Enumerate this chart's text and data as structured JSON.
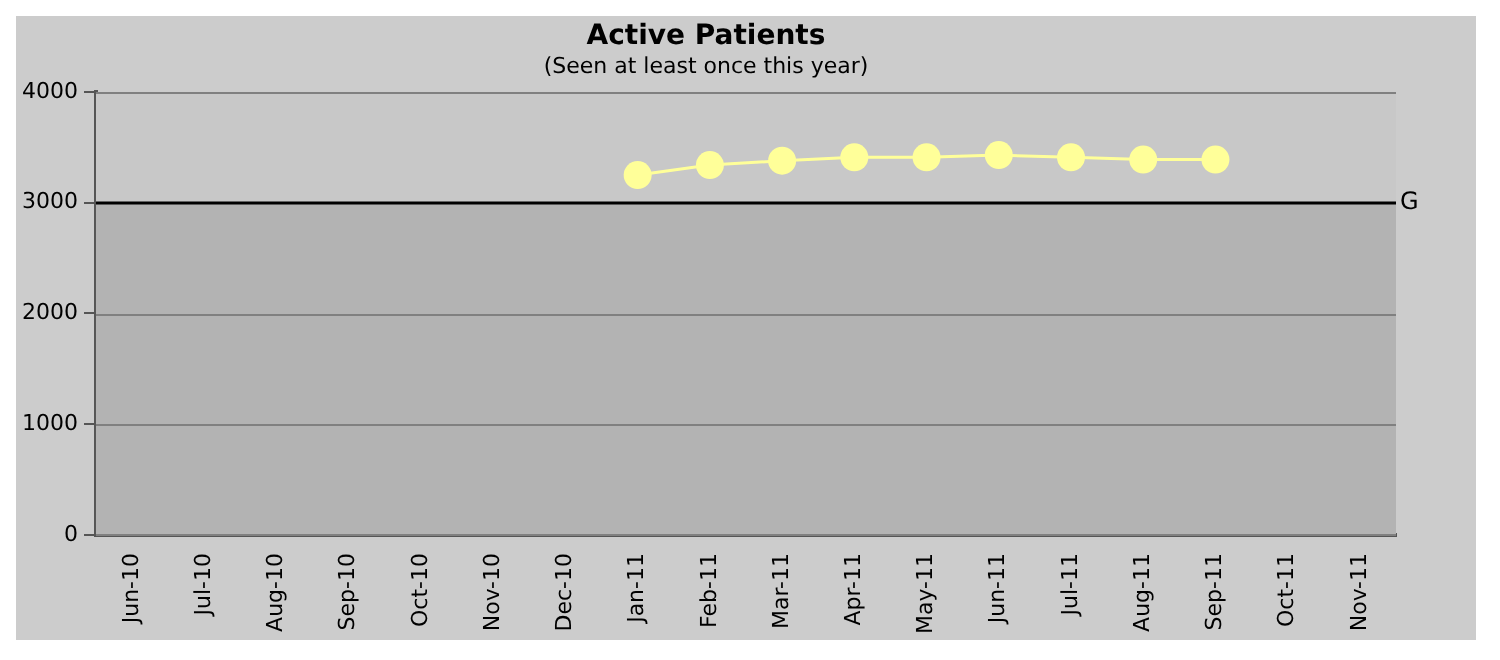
{
  "chart_data": {
    "type": "line",
    "title": "Active Patients",
    "subtitle": "(Seen at least once this year)",
    "categories": [
      "Jun-10",
      "Jul-10",
      "Aug-10",
      "Sep-10",
      "Oct-10",
      "Nov-10",
      "Dec-10",
      "Jan-11",
      "Feb-11",
      "Mar-11",
      "Apr-11",
      "May-11",
      "Jun-11",
      "Jul-11",
      "Aug-11",
      "Sep-11",
      "Oct-11",
      "Nov-11"
    ],
    "series": [
      {
        "color": "#ffff99",
        "values": [
          null,
          null,
          null,
          null,
          null,
          null,
          null,
          3250,
          3340,
          3380,
          3410,
          3410,
          3430,
          3410,
          3390,
          3390,
          null,
          null
        ]
      }
    ],
    "ylim": [
      0,
      4000
    ],
    "yticks": [
      0,
      1000,
      2000,
      3000,
      4000
    ],
    "grid": "y",
    "marker": "circle",
    "line_style": "solid",
    "ref_lines": [
      {
        "axis": "y",
        "value": 3000,
        "label": "G",
        "color": "#000000"
      }
    ],
    "bands": [
      {
        "axis": "y",
        "from": 0,
        "to": 3000,
        "color": "#b3b3b3"
      }
    ],
    "legend": false
  }
}
